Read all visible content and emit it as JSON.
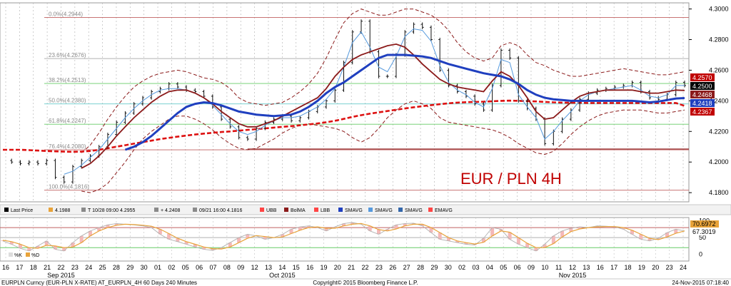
{
  "chart_data": {
    "type": "line",
    "title": "EUR / PLN 4H",
    "y_axis": {
      "ticks": [
        "4.3000",
        "4.2800",
        "4.2600",
        "4.2400",
        "4.2200",
        "4.2000",
        "4.1800"
      ],
      "range": [
        4.174,
        4.304
      ],
      "side": "right"
    },
    "price_badges": [
      {
        "label": "4.2570",
        "color": "#c00000",
        "text_color": "#ffffff"
      },
      {
        "label": "4.2500",
        "color": "#000000",
        "text_color": "#ffffff"
      },
      {
        "label": "4.2468",
        "color": "#8b1a1a",
        "text_color": "#ffffff"
      },
      {
        "label": "4.2418",
        "color": "#1f3fbf",
        "text_color": "#ffffff"
      },
      {
        "label": "4.2367",
        "color": "#c00000",
        "text_color": "#ffffff"
      }
    ],
    "fib_levels": [
      {
        "label": "0.0%(4.2944)",
        "value": 4.2944,
        "color": "#c06060"
      },
      {
        "label": "23.6%(4.2676)",
        "value": 4.2676,
        "color": "#b0b0b0"
      },
      {
        "label": "38.2%(4.2513)",
        "value": 4.2513,
        "color": "#66cc66"
      },
      {
        "label": "50.0%(4.2380)",
        "value": 4.238,
        "color": "#66cccc"
      },
      {
        "label": "61.8%(4.2247)",
        "value": 4.2247,
        "color": "#66cc66"
      },
      {
        "label": "76.4%(4.2080)",
        "value": 4.208,
        "color": "#c06060"
      },
      {
        "label": "100.0%(4.1816)",
        "value": 4.1816,
        "color": "#c06060"
      }
    ],
    "support_line": {
      "value": 4.2085,
      "from_index": 28
    },
    "series": [
      {
        "name": "Last Price",
        "color": "#000000",
        "values": [
          4.201,
          4.2,
          4.199,
          4.2,
          4.199,
          4.201,
          4.19,
          4.187,
          4.197,
          4.201,
          4.204,
          4.21,
          4.218,
          4.226,
          4.232,
          4.238,
          4.242,
          4.246,
          4.248,
          4.251,
          4.249,
          4.247,
          4.246,
          4.243,
          4.236,
          4.228,
          4.223,
          4.216,
          4.215,
          4.222,
          4.226,
          4.228,
          4.23,
          4.227,
          4.229,
          4.233,
          4.236,
          4.24,
          4.247,
          4.265,
          4.285,
          4.292,
          4.272,
          4.256,
          4.256,
          4.27,
          4.285,
          4.29,
          4.288,
          4.28,
          4.26,
          4.25,
          4.246,
          4.243,
          4.238,
          4.234,
          4.25,
          4.273,
          4.268,
          4.24,
          4.235,
          4.228,
          4.212,
          4.22,
          4.228,
          4.234,
          4.241,
          4.245,
          4.247,
          4.248,
          4.249,
          4.25,
          4.252,
          4.246,
          4.242,
          4.241,
          4.244,
          4.252,
          4.25
        ]
      },
      {
        "name": "SMAVG",
        "color": "#1f3fbf",
        "values": [
          null,
          null,
          null,
          null,
          null,
          null,
          null,
          null,
          null,
          null,
          null,
          null,
          null,
          null,
          4.208,
          4.21,
          4.213,
          4.217,
          4.222,
          4.227,
          4.232,
          4.236,
          4.238,
          4.239,
          4.2385,
          4.237,
          4.235,
          4.233,
          4.232,
          4.231,
          4.2305,
          4.23,
          4.2305,
          4.231,
          4.233,
          4.236,
          4.24,
          4.245,
          4.249,
          4.252,
          4.256,
          4.26,
          4.264,
          4.268,
          4.27,
          4.27,
          4.27,
          4.2695,
          4.269,
          4.268,
          4.266,
          4.264,
          4.2625,
          4.261,
          4.2595,
          4.258,
          4.257,
          4.256,
          4.254,
          4.251,
          4.247,
          4.244,
          4.242,
          4.241,
          4.2405,
          4.24,
          4.24,
          4.24,
          4.24,
          4.24,
          4.24,
          4.24,
          4.24,
          4.2395,
          4.239,
          4.2395,
          4.2405,
          4.2415,
          4.2418
        ]
      },
      {
        "name": "BolMA",
        "color": "#8b1a1a",
        "values": [
          null,
          null,
          null,
          null,
          null,
          null,
          null,
          null,
          null,
          4.196,
          4.199,
          4.204,
          4.21,
          4.217,
          4.223,
          4.229,
          4.234,
          4.239,
          4.243,
          4.246,
          4.247,
          4.247,
          4.245,
          4.242,
          4.238,
          4.233,
          4.229,
          4.225,
          4.223,
          4.223,
          4.225,
          4.227,
          4.23,
          4.233,
          4.236,
          4.239,
          4.242,
          4.248,
          4.256,
          4.262,
          4.267,
          4.27,
          4.272,
          4.274,
          4.276,
          4.277,
          4.275,
          4.27,
          4.264,
          4.259,
          4.254,
          4.251,
          4.249,
          4.248,
          4.247,
          4.246,
          4.253,
          4.259,
          4.256,
          4.25,
          4.242,
          4.233,
          4.228,
          4.229,
          4.234,
          4.239,
          4.243,
          4.245,
          4.246,
          4.247,
          4.247,
          4.247,
          4.247,
          4.246,
          4.245,
          4.245,
          4.246,
          4.247,
          4.2468
        ]
      },
      {
        "name": "EMAVG",
        "color": "#dd1111",
        "values": [
          4.208,
          4.208,
          4.208,
          4.2078,
          4.2075,
          4.2072,
          4.207,
          4.2068,
          4.2067,
          4.2068,
          4.2072,
          4.208,
          4.209,
          4.21,
          4.211,
          4.212,
          4.213,
          4.214,
          4.215,
          4.2158,
          4.2166,
          4.2173,
          4.218,
          4.2186,
          4.2191,
          4.2196,
          4.22,
          4.2205,
          4.221,
          4.2215,
          4.222,
          4.2225,
          4.223,
          4.2235,
          4.224,
          4.2246,
          4.2252,
          4.226,
          4.227,
          4.2282,
          4.2295,
          4.2306,
          4.2316,
          4.2325,
          4.2333,
          4.2342,
          4.235,
          4.2358,
          4.2365,
          4.2372,
          4.2378,
          4.2384,
          4.2388,
          4.2391,
          4.2393,
          4.2394,
          4.2397,
          4.24,
          4.2401,
          4.24,
          4.2398,
          4.2396,
          4.2393,
          4.239,
          4.2388,
          4.2387,
          4.2387,
          4.2386,
          4.2386,
          4.2386,
          4.2386,
          4.2386,
          4.2386,
          4.2386,
          4.2386,
          4.2386,
          4.2386,
          4.2386,
          4.2367
        ]
      },
      {
        "name": "SMAVG",
        "color": "#5599dd",
        "values": [
          null,
          null,
          null,
          null,
          null,
          null,
          null,
          4.192,
          4.194,
          4.198,
          4.203,
          4.208,
          4.215,
          4.222,
          4.229,
          4.235,
          4.24,
          4.244,
          4.247,
          4.248,
          4.248,
          4.247,
          4.245,
          4.242,
          4.237,
          4.231,
          4.225,
          4.22,
          4.218,
          4.22,
          4.224,
          4.227,
          4.229,
          4.229,
          4.23,
          4.233,
          4.236,
          4.241,
          4.248,
          4.262,
          4.278,
          4.285,
          4.275,
          4.262,
          4.259,
          4.269,
          4.282,
          4.287,
          4.286,
          4.279,
          4.263,
          4.252,
          4.247,
          4.244,
          4.239,
          4.236,
          4.248,
          4.267,
          4.265,
          4.244,
          4.236,
          4.229,
          4.215,
          4.22,
          4.227,
          4.233,
          4.24,
          4.244,
          4.246,
          4.247,
          4.248,
          4.249,
          4.25,
          4.247,
          4.243,
          4.242,
          4.244,
          4.25,
          4.25
        ]
      },
      {
        "name": "UBB",
        "color": "#8b1a1a",
        "values": [
          null,
          null,
          null,
          null,
          null,
          null,
          null,
          null,
          null,
          4.206,
          4.211,
          4.219,
          4.228,
          4.236,
          4.243,
          4.249,
          4.253,
          4.256,
          4.258,
          4.259,
          4.26,
          4.259,
          4.257,
          4.255,
          4.254,
          4.252,
          4.248,
          4.242,
          4.239,
          4.238,
          4.237,
          4.238,
          4.239,
          4.242,
          4.246,
          4.251,
          4.258,
          4.268,
          4.28,
          4.291,
          4.297,
          4.3,
          4.298,
          4.296,
          4.296,
          4.298,
          4.3,
          4.3,
          4.298,
          4.296,
          4.292,
          4.286,
          4.278,
          4.272,
          4.268,
          4.266,
          4.268,
          4.276,
          4.278,
          4.276,
          4.27,
          4.265,
          4.263,
          4.26,
          4.258,
          4.256,
          4.256,
          4.257,
          4.258,
          4.259,
          4.26,
          4.261,
          4.26,
          4.259,
          4.258,
          4.257,
          4.257,
          4.258,
          4.259
        ]
      },
      {
        "name": "LBB",
        "color": "#8b1a1a",
        "values": [
          null,
          null,
          null,
          null,
          null,
          null,
          null,
          null,
          null,
          4.181,
          4.18,
          4.182,
          4.186,
          4.193,
          4.2,
          4.208,
          4.215,
          4.22,
          4.224,
          4.228,
          4.23,
          4.23,
          4.228,
          4.225,
          4.221,
          4.216,
          4.212,
          4.209,
          4.208,
          4.209,
          4.212,
          4.215,
          4.219,
          4.222,
          4.224,
          4.225,
          4.224,
          4.223,
          4.222,
          4.22,
          4.216,
          4.213,
          4.216,
          4.222,
          4.229,
          4.234,
          4.238,
          4.24,
          4.238,
          4.235,
          4.229,
          4.226,
          4.225,
          4.224,
          4.223,
          4.222,
          4.221,
          4.219,
          4.216,
          4.212,
          4.209,
          4.206,
          4.205,
          4.207,
          4.212,
          4.218,
          4.223,
          4.227,
          4.23,
          4.232,
          4.233,
          4.234,
          4.234,
          4.234,
          4.233,
          4.232,
          4.232,
          4.233,
          4.234
        ]
      }
    ],
    "x_ticks": [
      "16",
      "17",
      "18",
      "21",
      "22",
      "23",
      "24",
      "25",
      "28",
      "29",
      "30",
      "01",
      "02",
      "05",
      "06",
      "07",
      "08",
      "09",
      "12",
      "13",
      "14",
      "15",
      "16",
      "19",
      "20",
      "21",
      "22",
      "23",
      "26",
      "27",
      "28",
      "29",
      "30",
      "02",
      "03",
      "04",
      "05",
      "06",
      "09",
      "10",
      "11",
      "12",
      "13",
      "16",
      "17",
      "18",
      "19",
      "20",
      "23",
      "24"
    ],
    "month_labels": [
      {
        "label": "Sep 2015",
        "tick_index": 4
      },
      {
        "label": "Oct 2015",
        "tick_index": 20
      },
      {
        "label": "Nov 2015",
        "tick_index": 41
      }
    ],
    "legend": [
      {
        "swatch": "#000000",
        "text": "Last Price"
      },
      {
        "swatch": "#e8a33a",
        "text": "4.1988"
      },
      {
        "swatch": "#8a8a8a",
        "text": "T 10/28 09:00 4.2955"
      },
      {
        "swatch": "#8a8a8a",
        "text": "+ 4.2408"
      },
      {
        "swatch": "#8a8a8a",
        "text": "09/21 16:00 4.1816"
      },
      {
        "swatch": "#ff4444",
        "text": "UBB"
      },
      {
        "swatch": "#8b1a1a",
        "text": "BolMA"
      },
      {
        "swatch": "#ff4444",
        "text": "LBB"
      },
      {
        "swatch": "#1f3fbf",
        "text": "SMAVG"
      },
      {
        "swatch": "#5599dd",
        "text": "SMAVG"
      },
      {
        "swatch": "#3366aa",
        "text": "SMAVG"
      },
      {
        "swatch": "#ff4444",
        "text": "EMAVG"
      }
    ],
    "oscillator": {
      "range": [
        -20,
        110
      ],
      "ticks": [
        "100",
        "50",
        "0"
      ],
      "levels": [
        {
          "value": 80,
          "color": "#c06060"
        },
        {
          "value": 50,
          "color": "#b0b0b0"
        },
        {
          "value": 20,
          "color": "#66cc66"
        }
      ],
      "badges": [
        {
          "label": "70.6972",
          "color": "#e8a33a",
          "text_color": "#000000"
        },
        {
          "label": "67.3019",
          "color": "#ffffff",
          "text_color": "#000000"
        }
      ],
      "legend": [
        {
          "swatch": "#dddddd",
          "text": "%K"
        },
        {
          "swatch": "#e8a33a",
          "text": "%D"
        }
      ],
      "k": [
        40,
        30,
        18,
        10,
        25,
        40,
        15,
        10,
        35,
        55,
        70,
        80,
        88,
        92,
        90,
        88,
        85,
        80,
        60,
        45,
        38,
        30,
        22,
        15,
        12,
        20,
        35,
        50,
        60,
        55,
        45,
        50,
        60,
        75,
        82,
        85,
        80,
        70,
        82,
        92,
        95,
        90,
        70,
        60,
        75,
        88,
        92,
        93,
        85,
        65,
        45,
        40,
        35,
        30,
        28,
        48,
        80,
        75,
        45,
        30,
        20,
        10,
        30,
        55,
        70,
        78,
        82,
        80,
        85,
        84,
        82,
        75,
        60,
        45,
        40,
        48,
        65,
        75,
        70
      ],
      "d": [
        42,
        38,
        30,
        20,
        18,
        27,
        25,
        20,
        22,
        35,
        55,
        70,
        80,
        87,
        90,
        89,
        87,
        84,
        75,
        62,
        48,
        38,
        30,
        22,
        17,
        16,
        22,
        35,
        48,
        56,
        53,
        50,
        52,
        62,
        72,
        80,
        82,
        78,
        78,
        85,
        90,
        92,
        85,
        74,
        70,
        76,
        85,
        90,
        90,
        80,
        65,
        50,
        40,
        35,
        31,
        36,
        55,
        70,
        66,
        50,
        33,
        20,
        20,
        32,
        52,
        68,
        76,
        80,
        82,
        83,
        83,
        80,
        72,
        60,
        48,
        44,
        52,
        63,
        70
      ]
    },
    "footer": {
      "left": "EURPLN Curncy (EUR-PLN X-RATE) AT_EURPLN_4H 60 Days 240 Minutes",
      "center": "Copyright© 2015 Bloomberg Finance L.P.",
      "right": "24-Nov-2015 07:18:40"
    }
  }
}
